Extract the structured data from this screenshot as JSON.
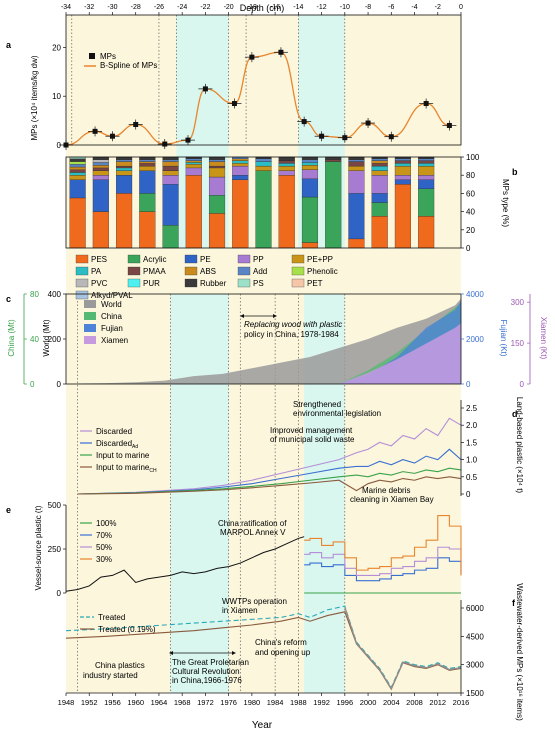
{
  "colors": {
    "yellow_bg": "#fbf6dc",
    "cyan_bg": "#d9f6ef",
    "orange": "#e9852c",
    "blue": "#3a6fd0",
    "purple": "#b48ed8",
    "green": "#3aa24a",
    "gray": "#8f8f8f",
    "china_green": "#55b973",
    "fujian_blue": "#4f83d8",
    "xiamen_purple": "#c79ae0",
    "teal_dash": "#2aa9b6",
    "brown": "#8b5a3c"
  },
  "panels": {
    "a": {
      "label": "a"
    },
    "b": {
      "label": "b"
    },
    "c": {
      "label": "c"
    },
    "d": {
      "label": "d"
    },
    "e": {
      "label": "e"
    },
    "f": {
      "label": "f"
    }
  },
  "depth_axis": {
    "title": "Depth (cm)",
    "ticks": [
      -34,
      -32,
      -30,
      -28,
      -26,
      -24,
      -22,
      -20,
      -18,
      -16,
      -14,
      -12,
      -10,
      -8,
      -6,
      -4,
      -2,
      0
    ]
  },
  "year_axis": {
    "title": "Year",
    "ticks": [
      1948,
      1952,
      1956,
      1960,
      1964,
      1968,
      1972,
      1976,
      1980,
      1984,
      1988,
      1992,
      1996,
      2000,
      2004,
      2008,
      2012,
      2016
    ]
  },
  "chart_data": [
    {
      "id": "a",
      "type": "scatter",
      "ylabel": "MPs (×10⁴ items/kg dw)",
      "ylim": [
        0,
        25
      ],
      "yticks": [
        0,
        10,
        20
      ],
      "legend": [
        "MPs",
        "B-Spline of MPs"
      ],
      "x_depth": [
        -34,
        -31.5,
        -30,
        -28,
        -25.5,
        -23.5,
        -22,
        -19.5,
        -18,
        -15.5,
        -13.5,
        -12,
        -10,
        -8,
        -6,
        -3,
        -1
      ],
      "values": [
        0,
        2.8,
        1.8,
        4.2,
        0.2,
        1.0,
        11.5,
        8.5,
        18.0,
        19.0,
        4.8,
        1.8,
        1.5,
        4.5,
        1.7,
        8.5,
        4.0
      ]
    },
    {
      "id": "b",
      "type": "bar",
      "stacked": true,
      "ylabel": "MPs type (%)",
      "ylim": [
        0,
        100
      ],
      "yticks": [
        0,
        20,
        40,
        60,
        80,
        100
      ],
      "legend_types": [
        "PES",
        "Acrylic",
        "PE",
        "PP",
        "PE+PP",
        "PA",
        "PMAA",
        "ABS",
        "Add",
        "Phenolic",
        "PVC",
        "PUR",
        "Rubber",
        "PS",
        "PET",
        "Alkyd/PVAL"
      ],
      "legend_colors": [
        "#f06a1e",
        "#3aa55a",
        "#2f63c6",
        "#a87bd3",
        "#c99518",
        "#2bbcc4",
        "#7a4545",
        "#c98a1e",
        "#5a85c4",
        "#a8e04a",
        "#b8b8b8",
        "#4ef0f0",
        "#3a3a3a",
        "#9ce0c8",
        "#f5c7a8",
        "#a9c4e0"
      ],
      "x_depth": [
        -33,
        -31,
        -29,
        -27,
        -25,
        -23,
        -21,
        -19,
        -17,
        -15,
        -13,
        -11,
        -9,
        -7,
        -5,
        -3
      ],
      "stacks_order": [
        "PES",
        "Acrylic",
        "PE",
        "PP",
        "PE+PP",
        "PA",
        "PMAA",
        "ABS",
        "Add",
        "Phenolic",
        "PVC",
        "PUR",
        "Rubber",
        "PS",
        "PET",
        "Alkyd/PVAL"
      ],
      "stacks": [
        [
          55,
          0,
          20,
          0,
          5,
          3,
          3,
          3,
          3,
          3,
          0,
          0,
          3,
          2,
          0,
          0
        ],
        [
          40,
          0,
          35,
          5,
          5,
          0,
          3,
          3,
          3,
          0,
          3,
          0,
          3,
          0,
          0,
          0
        ],
        [
          60,
          0,
          20,
          0,
          5,
          3,
          2,
          5,
          2,
          0,
          0,
          0,
          3,
          0,
          0,
          0
        ],
        [
          40,
          20,
          25,
          0,
          5,
          0,
          3,
          2,
          2,
          0,
          0,
          0,
          3,
          0,
          0,
          0
        ],
        [
          0,
          25,
          45,
          10,
          5,
          0,
          5,
          5,
          2,
          0,
          0,
          0,
          3,
          0,
          0,
          0
        ],
        [
          80,
          0,
          0,
          8,
          4,
          2,
          0,
          2,
          2,
          0,
          0,
          0,
          2,
          0,
          0,
          0
        ],
        [
          38,
          20,
          0,
          20,
          10,
          0,
          2,
          5,
          2,
          0,
          0,
          0,
          3,
          0,
          0,
          0
        ],
        [
          75,
          0,
          5,
          10,
          3,
          3,
          0,
          2,
          2,
          0,
          0,
          0,
          0,
          0,
          0,
          0
        ],
        [
          0,
          85,
          0,
          0,
          5,
          5,
          0,
          0,
          3,
          0,
          0,
          0,
          2,
          0,
          0,
          0
        ],
        [
          80,
          0,
          0,
          5,
          5,
          3,
          3,
          0,
          0,
          0,
          0,
          0,
          4,
          0,
          0,
          0
        ],
        [
          6,
          50,
          20,
          10,
          5,
          3,
          0,
          0,
          3,
          0,
          0,
          0,
          3,
          0,
          0,
          0
        ],
        [
          0,
          95,
          0,
          0,
          0,
          0,
          2,
          0,
          0,
          0,
          0,
          0,
          3,
          0,
          0,
          0
        ],
        [
          10,
          0,
          50,
          25,
          5,
          0,
          5,
          0,
          2,
          0,
          0,
          0,
          3,
          0,
          0,
          0
        ],
        [
          35,
          15,
          10,
          20,
          5,
          5,
          3,
          3,
          2,
          0,
          0,
          0,
          2,
          0,
          0,
          0
        ],
        [
          70,
          0,
          5,
          5,
          10,
          3,
          3,
          0,
          2,
          0,
          0,
          0,
          2,
          0,
          0,
          0
        ],
        [
          35,
          30,
          10,
          5,
          10,
          3,
          3,
          0,
          2,
          0,
          0,
          0,
          2,
          0,
          0,
          0
        ]
      ]
    },
    {
      "id": "c",
      "type": "area",
      "ylabel_left1": "China (Mt)",
      "ylabel_left2": "World (Mt)",
      "ylabel_right1": "Fujian (Kt)",
      "ylabel_right2": "Xiamen (Kt)",
      "ylim_world": [
        0,
        400
      ],
      "yticks_world": [
        0,
        200,
        400
      ],
      "yticks_china": [
        0,
        40,
        80
      ],
      "yticks_fujian": [
        0,
        2000,
        4000
      ],
      "yticks_xiamen": [
        0,
        150,
        300
      ],
      "legend": [
        "World",
        "China",
        "Fujian",
        "Xiamen"
      ],
      "annotation": "Replacing wood with plastic policy in China, 1978-1984",
      "x": [
        1950,
        1955,
        1960,
        1965,
        1970,
        1975,
        1980,
        1985,
        1990,
        1995,
        2000,
        2005,
        2010,
        2015,
        2016
      ],
      "world": [
        2,
        4,
        8,
        15,
        35,
        45,
        70,
        95,
        120,
        160,
        200,
        250,
        290,
        350,
        380
      ],
      "china": [
        0,
        0,
        0,
        0,
        0,
        0,
        0,
        0,
        0,
        0,
        60,
        140,
        240,
        340,
        360
      ],
      "fujian": [
        0,
        0,
        0,
        0,
        0,
        0,
        0,
        0,
        0,
        0,
        40,
        120,
        250,
        330,
        370
      ],
      "xiamen": [
        0,
        0,
        0,
        0,
        0,
        0,
        0,
        0,
        0,
        0,
        50,
        110,
        180,
        250,
        270
      ]
    },
    {
      "id": "d",
      "type": "line",
      "ylabel": "Land-based plastic (×10⁴ t)",
      "ylim": [
        0,
        2.5
      ],
      "yticks": [
        0,
        0.5,
        1.0,
        1.5,
        2.0,
        2.5
      ],
      "legend": [
        "Discarded",
        "Discarded_A",
        "Input to marine",
        "Input to marine_CH"
      ],
      "annotations": [
        "Strengthened environmental legislation",
        "Improved management of municipal solid waste",
        "Marine debris cleaning in Xiamen Bay"
      ],
      "x": [
        1950,
        1960,
        1970,
        1975,
        1980,
        1985,
        1990,
        1995,
        1998,
        2000,
        2002,
        2004,
        2006,
        2008,
        2010,
        2012,
        2014,
        2016
      ],
      "series": [
        {
          "name": "Discarded",
          "values": [
            0,
            0.05,
            0.15,
            0.25,
            0.4,
            0.6,
            0.8,
            1.0,
            1.2,
            1.3,
            1.5,
            1.4,
            1.7,
            1.6,
            1.9,
            1.7,
            2.2,
            2.0
          ]
        },
        {
          "name": "Discarded_A",
          "values": [
            0,
            0.04,
            0.12,
            0.2,
            0.3,
            0.45,
            0.6,
            0.75,
            0.8,
            0.8,
            0.95,
            0.85,
            1.0,
            0.9,
            1.1,
            1.0,
            1.3,
            1.0
          ]
        },
        {
          "name": "Input to marine",
          "values": [
            0,
            0.03,
            0.1,
            0.15,
            0.22,
            0.3,
            0.4,
            0.5,
            0.55,
            0.5,
            0.6,
            0.55,
            0.65,
            0.6,
            0.7,
            0.65,
            0.75,
            0.7
          ]
        },
        {
          "name": "Input to marine_CH",
          "values": [
            0,
            0.02,
            0.08,
            0.12,
            0.18,
            0.25,
            0.32,
            0.4,
            0.1,
            0.3,
            0.4,
            0.35,
            0.45,
            0.4,
            0.5,
            0.45,
            0.5,
            0.45
          ]
        }
      ]
    },
    {
      "id": "e",
      "type": "line",
      "ylabel": "Vessel-source plastic (t)",
      "ylim": [
        0,
        500
      ],
      "yticks": [
        0,
        250,
        500
      ],
      "legend": [
        "100%",
        "70%",
        "50%",
        "30%"
      ],
      "annotation": "China ratification of MARPOL Annex V",
      "x_base": [
        1948,
        1950,
        1952,
        1954,
        1956,
        1958,
        1960,
        1962,
        1964,
        1966,
        1968,
        1970,
        1972,
        1974,
        1976,
        1978,
        1980,
        1982,
        1984,
        1986,
        1988,
        1989
      ],
      "base": [
        10,
        20,
        40,
        90,
        100,
        130,
        60,
        80,
        90,
        100,
        120,
        110,
        120,
        140,
        150,
        170,
        200,
        230,
        250,
        280,
        310,
        320
      ],
      "x_post": [
        1989,
        1990,
        1992,
        1994,
        1996,
        1998,
        2000,
        2002,
        2004,
        2006,
        2008,
        2010,
        2012,
        2014,
        2016
      ],
      "series": [
        {
          "name": "100%",
          "values": [
            0,
            0,
            0,
            0,
            0,
            0,
            0,
            0,
            0,
            0,
            0,
            0,
            0,
            0,
            0
          ]
        },
        {
          "name": "70%",
          "values": [
            160,
            170,
            150,
            160,
            100,
            70,
            70,
            80,
            100,
            110,
            130,
            140,
            200,
            180,
            110
          ]
        },
        {
          "name": "50%",
          "values": [
            220,
            230,
            200,
            220,
            140,
            100,
            100,
            110,
            140,
            150,
            180,
            200,
            260,
            250,
            100
          ]
        },
        {
          "name": "30%",
          "values": [
            300,
            310,
            270,
            290,
            200,
            130,
            140,
            150,
            200,
            210,
            260,
            300,
            440,
            380,
            100
          ]
        }
      ]
    },
    {
      "id": "f",
      "type": "line",
      "ylabel": "Wastewater-derived MPs (×10¹⁶ items)",
      "ylim": [
        1500,
        6000
      ],
      "yticks": [
        1500,
        3000,
        4500,
        6000
      ],
      "legend": [
        "Treated",
        "Treated (0.19%)"
      ],
      "annotations": [
        "WWTPs operation in Xiamen",
        "China's reform and opening up",
        "China plastics industry started",
        "The Great Proletarian Cultural Revolution in China,1966-1976"
      ],
      "x": [
        1948,
        1955,
        1960,
        1965,
        1970,
        1975,
        1980,
        1985,
        1988,
        1990,
        1993,
        1996,
        1998,
        2000,
        2002,
        2004,
        2006,
        2008,
        2010,
        2012,
        2014,
        2016
      ],
      "series": [
        {
          "name": "Treated",
          "values": [
            4800,
            4900,
            5000,
            5100,
            5200,
            5300,
            5400,
            5500,
            5700,
            5500,
            5900,
            6100,
            4200,
            3500,
            2800,
            1800,
            3200,
            3000,
            2900,
            3100,
            2800,
            2900
          ]
        },
        {
          "name": "Treated (0.19%)",
          "values": [
            4400,
            4500,
            4600,
            4700,
            4800,
            4950,
            5100,
            5300,
            5500,
            5300,
            5600,
            5800,
            4100,
            3400,
            2700,
            1700,
            3100,
            2900,
            2800,
            3000,
            2700,
            2800
          ]
        }
      ]
    }
  ],
  "legend_text": {
    "a_mps": "MPs",
    "a_spline": "B-Spline of MPs",
    "c_world": "World",
    "c_china": "China",
    "c_fujian": "Fujian",
    "c_xiamen": "Xiamen",
    "d_discarded": "Discarded",
    "d_discarded_a": "Discarded",
    "d_discarded_a_sub": "Ad",
    "d_input": "Input to marine",
    "d_input_ch": "Input to marine",
    "d_input_ch_sub": "CH",
    "e_100": "100%",
    "e_70": "70%",
    "e_50": "50%",
    "e_30": "30%",
    "f_treated": "Treated",
    "f_treated019": "Treated (0.19%)"
  },
  "ann_text": {
    "c_policy1": "Replacing wood with plastic",
    "c_policy2": "policy in China, 1978-1984",
    "d_legislation1": "Strengthened",
    "d_legislation2": "environmental legislation",
    "d_msw1": "Improved management",
    "d_msw2": "of municipal solid waste",
    "d_debris1": "Marine debris",
    "d_debris2": "cleaning in Xiamen Bay",
    "e_marpol1": "China ratification of",
    "e_marpol2": "MARPOL Annex V",
    "f_wwtp1": "WWTPs operation",
    "f_wwtp2": "in Xiamen",
    "f_reform1": "China's reform",
    "f_reform2": "and opening up",
    "f_industry1": "China plastics",
    "f_industry2": "industry started",
    "f_gpcr1": "The Great Proletarian",
    "f_gpcr2": "Cultural Revolution",
    "f_gpcr3": "in China,1966-1976"
  },
  "axis_labels": {
    "a_y": "MPs (×10⁴ items/kg dw)",
    "b_y": "MPs type (%)",
    "c_y1": "China (Mt)",
    "c_y2": "World (Mt)",
    "c_y3": "Fujian (Kt)",
    "c_y4": "Xiamen (Kt)",
    "d_y": "Land-based plastic (×10⁴ t)",
    "e_y": "Vessel-source plastic (t)",
    "f_y": "Wastewater-derived MPs (×10¹⁶ items)"
  }
}
